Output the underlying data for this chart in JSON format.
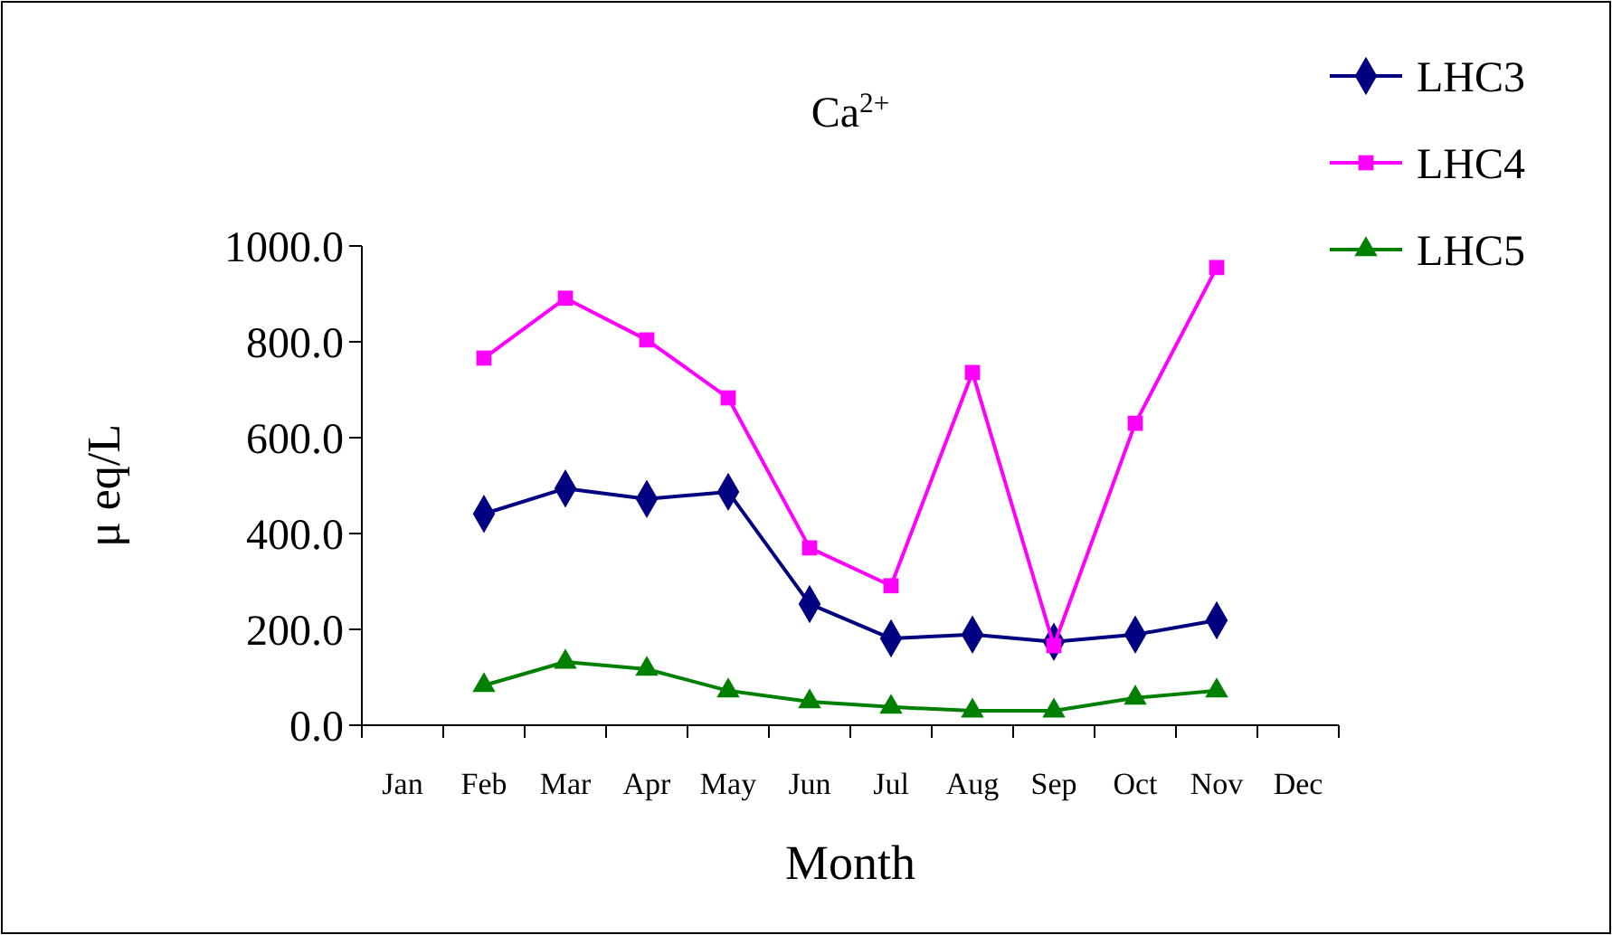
{
  "chart_data": {
    "type": "line",
    "title": "Ca$^{2+}$",
    "xlabel": "Month",
    "ylabel": "μ eq/L",
    "categories": [
      "Jan",
      "Feb",
      "Mar",
      "Apr",
      "May",
      "Jun",
      "Jul",
      "Aug",
      "Sep",
      "Oct",
      "Nov",
      "Dec"
    ],
    "series": [
      {
        "name": "LHC3",
        "color": "#000080",
        "marker": "diamond",
        "values": [
          null,
          441,
          494,
          472,
          487,
          253,
          181,
          189,
          174,
          189,
          219,
          null
        ]
      },
      {
        "name": "LHC4",
        "color": "#ff00ff",
        "marker": "square",
        "values": [
          null,
          766,
          891,
          804,
          683,
          370,
          291,
          736,
          166,
          630,
          955,
          null
        ]
      },
      {
        "name": "LHC5",
        "color": "#008000",
        "marker": "triangle",
        "values": [
          null,
          83,
          132,
          117,
          72,
          49,
          38,
          30,
          30,
          57,
          72,
          null
        ]
      }
    ],
    "ylim": [
      0,
      1000
    ],
    "yticks": [
      {
        "value": 0,
        "label": "0.0"
      },
      {
        "value": 200,
        "label": "200.0"
      },
      {
        "value": 400,
        "label": "400.0"
      },
      {
        "value": 600,
        "label": "600.0"
      },
      {
        "value": 800,
        "label": "800.0"
      },
      {
        "value": 1000,
        "label": "1000.0"
      }
    ],
    "grid": false,
    "legend": "top right",
    "line_style": "solid"
  }
}
